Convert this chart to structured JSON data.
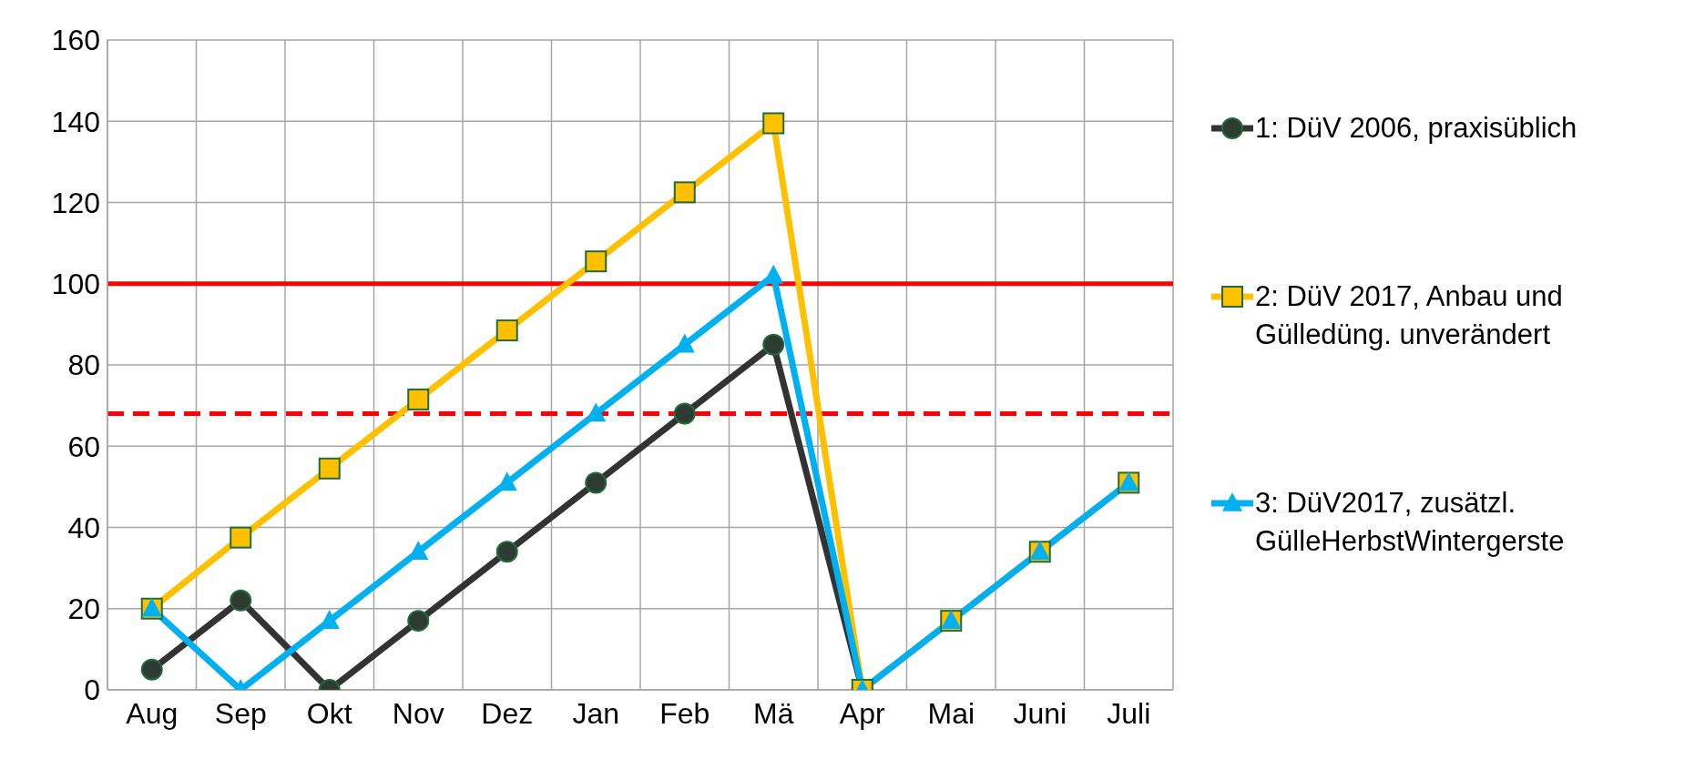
{
  "chart_data": {
    "type": "line",
    "categories": [
      "Aug",
      "Sep",
      "Okt",
      "Nov",
      "Dez",
      "Jan",
      "Feb",
      "Mä",
      "Apr",
      "Mai",
      "Juni",
      "Juli"
    ],
    "series": [
      {
        "name": "1: DüV 2006, praxisüblich",
        "color": "#333333",
        "marker": "circle",
        "values": [
          5,
          22,
          0,
          17,
          34,
          51,
          68,
          85,
          0,
          null,
          null,
          null
        ]
      },
      {
        "name": "2: DüV 2017, Anbau und Gülledüng. unverändert",
        "color": "#ffc000",
        "marker": "square",
        "values": [
          20,
          37.5,
          54.5,
          71.5,
          88.5,
          105.5,
          122.5,
          139.5,
          0,
          17,
          34,
          51
        ]
      },
      {
        "name": "3: DüV2017, zusätzl. GülleHerbstWintergerste",
        "color": "#00b0f0",
        "marker": "triangle",
        "values": [
          20,
          0,
          17,
          34,
          51,
          68,
          85,
          102,
          0,
          17,
          34,
          51
        ]
      }
    ],
    "ylim": [
      0,
      160
    ],
    "yticks": [
      0,
      20,
      40,
      60,
      80,
      100,
      120,
      140,
      160
    ],
    "grid": true,
    "legend": "right",
    "ref_lines": [
      {
        "axis": "y",
        "value": 100,
        "color": "#ff0000",
        "line_style": "solid"
      },
      {
        "axis": "y",
        "value": 68,
        "color": "#ff0000",
        "line_style": "dashed"
      }
    ]
  }
}
